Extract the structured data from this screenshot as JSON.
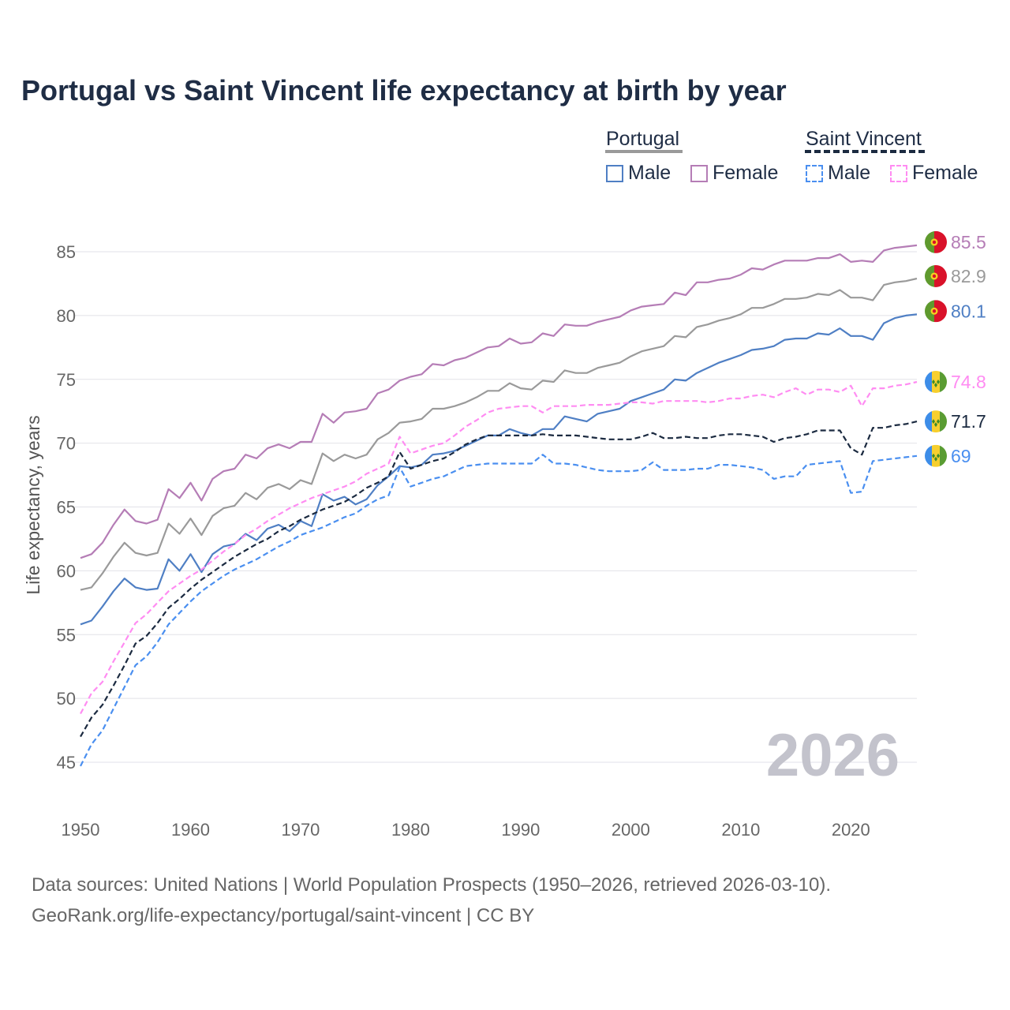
{
  "chart_data": {
    "type": "line",
    "title": "Portugal vs Saint Vincent life expectancy at birth by year",
    "xlabel": "",
    "ylabel": "Life expectancy, years",
    "xlim": [
      1950,
      2026
    ],
    "ylim": [
      45,
      85
    ],
    "x_ticks": [
      "1950",
      "1960",
      "1970",
      "1980",
      "1990",
      "2000",
      "2010",
      "2020"
    ],
    "y_ticks": [
      "45",
      "50",
      "55",
      "60",
      "65",
      "70",
      "75",
      "80",
      "85"
    ],
    "grid": true,
    "watermark_year": "2026",
    "legend": {
      "placement": "top-right",
      "groups": [
        {
          "name": "Portugal",
          "items": [
            "Male",
            "Female"
          ]
        },
        {
          "name": "Saint Vincent",
          "items": [
            "Male",
            "Female"
          ]
        }
      ]
    },
    "x_start": 1950,
    "series": [
      {
        "name": "Portugal Female",
        "color": "#b57db6",
        "dashed": false,
        "flag": "portugal",
        "end_label": "85.5",
        "values": [
          61.0,
          61.3,
          62.2,
          63.6,
          64.8,
          63.9,
          63.7,
          64.0,
          66.4,
          65.7,
          66.9,
          65.5,
          67.2,
          67.8,
          68.0,
          69.1,
          68.8,
          69.6,
          69.9,
          69.6,
          70.1,
          70.1,
          72.3,
          71.6,
          72.4,
          72.5,
          72.7,
          73.9,
          74.2,
          74.9,
          75.2,
          75.4,
          76.2,
          76.1,
          76.5,
          76.7,
          77.1,
          77.5,
          77.6,
          78.2,
          77.8,
          77.9,
          78.6,
          78.4,
          79.3,
          79.2,
          79.2,
          79.5,
          79.7,
          79.9,
          80.4,
          80.7,
          80.8,
          80.9,
          81.8,
          81.6,
          82.6,
          82.6,
          82.8,
          82.9,
          83.2,
          83.7,
          83.6,
          84.0,
          84.3,
          84.3,
          84.3,
          84.5,
          84.5,
          84.8,
          84.2,
          84.3,
          84.2,
          85.1,
          85.3,
          85.4,
          85.5
        ]
      },
      {
        "name": "Portugal",
        "color": "#9a9a9a",
        "dashed": false,
        "flag": "portugal",
        "end_label": "82.9",
        "values": [
          58.5,
          58.7,
          59.8,
          61.1,
          62.2,
          61.4,
          61.2,
          61.4,
          63.7,
          62.9,
          64.1,
          62.8,
          64.3,
          64.9,
          65.1,
          66.1,
          65.6,
          66.5,
          66.8,
          66.4,
          67.1,
          66.8,
          69.2,
          68.6,
          69.1,
          68.8,
          69.1,
          70.3,
          70.8,
          71.6,
          71.7,
          71.9,
          72.7,
          72.7,
          72.9,
          73.2,
          73.6,
          74.1,
          74.1,
          74.7,
          74.3,
          74.2,
          74.9,
          74.8,
          75.7,
          75.5,
          75.5,
          75.9,
          76.1,
          76.3,
          76.8,
          77.2,
          77.4,
          77.6,
          78.4,
          78.3,
          79.1,
          79.3,
          79.6,
          79.8,
          80.1,
          80.6,
          80.6,
          80.9,
          81.3,
          81.3,
          81.4,
          81.7,
          81.6,
          82.0,
          81.4,
          81.4,
          81.2,
          82.4,
          82.6,
          82.7,
          82.9
        ]
      },
      {
        "name": "Portugal Male",
        "color": "#4f7fc4",
        "dashed": false,
        "flag": "portugal",
        "end_label": "80.1",
        "values": [
          55.8,
          56.1,
          57.2,
          58.4,
          59.4,
          58.7,
          58.5,
          58.6,
          60.9,
          60.0,
          61.3,
          59.9,
          61.3,
          61.9,
          62.1,
          62.9,
          62.4,
          63.3,
          63.6,
          63.1,
          63.9,
          63.5,
          66.0,
          65.5,
          65.8,
          65.2,
          65.6,
          66.7,
          67.4,
          68.2,
          68.1,
          68.3,
          69.1,
          69.2,
          69.4,
          69.8,
          70.2,
          70.6,
          70.6,
          71.1,
          70.8,
          70.6,
          71.1,
          71.1,
          72.1,
          71.9,
          71.7,
          72.3,
          72.5,
          72.7,
          73.3,
          73.6,
          73.9,
          74.2,
          75.0,
          74.9,
          75.5,
          75.9,
          76.3,
          76.6,
          76.9,
          77.3,
          77.4,
          77.6,
          78.1,
          78.2,
          78.2,
          78.6,
          78.5,
          79.0,
          78.4,
          78.4,
          78.1,
          79.4,
          79.8,
          80.0,
          80.1
        ]
      },
      {
        "name": "Saint Vincent Female",
        "color": "#ff8cf2",
        "dashed": true,
        "flag": "saint-vincent",
        "end_label": "74.8",
        "values": [
          48.8,
          50.4,
          51.3,
          52.9,
          54.4,
          55.9,
          56.6,
          57.5,
          58.4,
          59.0,
          59.6,
          60.1,
          60.8,
          61.5,
          62.1,
          62.8,
          63.3,
          63.9,
          64.4,
          64.9,
          65.3,
          65.7,
          66.0,
          66.3,
          66.6,
          67.0,
          67.6,
          68.0,
          68.4,
          70.5,
          69.2,
          69.5,
          69.8,
          70.0,
          70.6,
          71.3,
          71.8,
          72.4,
          72.7,
          72.8,
          72.9,
          72.9,
          72.4,
          72.9,
          72.9,
          72.9,
          73.0,
          73.0,
          73.0,
          73.1,
          73.2,
          73.2,
          73.1,
          73.3,
          73.3,
          73.3,
          73.3,
          73.2,
          73.3,
          73.5,
          73.5,
          73.7,
          73.8,
          73.6,
          74.0,
          74.3,
          73.8,
          74.2,
          74.2,
          74.0,
          74.5,
          72.9,
          74.3,
          74.3,
          74.5,
          74.6,
          74.8
        ]
      },
      {
        "name": "Saint Vincent",
        "color": "#1b2a40",
        "dashed": true,
        "flag": "saint-vincent",
        "end_label": "71.7",
        "values": [
          47.0,
          48.5,
          49.5,
          51.0,
          52.6,
          54.3,
          54.9,
          55.9,
          57.1,
          57.8,
          58.6,
          59.3,
          59.9,
          60.5,
          61.1,
          61.6,
          62.1,
          62.5,
          63.1,
          63.5,
          64.0,
          64.4,
          64.8,
          65.1,
          65.4,
          65.9,
          66.5,
          66.9,
          67.4,
          69.3,
          68.0,
          68.3,
          68.6,
          68.8,
          69.3,
          69.9,
          70.3,
          70.6,
          70.6,
          70.6,
          70.6,
          70.6,
          70.7,
          70.6,
          70.6,
          70.6,
          70.5,
          70.4,
          70.3,
          70.3,
          70.3,
          70.5,
          70.8,
          70.4,
          70.4,
          70.5,
          70.4,
          70.4,
          70.6,
          70.7,
          70.7,
          70.6,
          70.5,
          70.1,
          70.4,
          70.5,
          70.7,
          71.0,
          71.0,
          71.0,
          69.6,
          69.1,
          71.2,
          71.2,
          71.4,
          71.5,
          71.7
        ]
      },
      {
        "name": "Saint Vincent Male",
        "color": "#4a8ff0",
        "dashed": true,
        "flag": "saint-vincent",
        "end_label": "69",
        "values": [
          44.7,
          46.4,
          47.5,
          49.2,
          50.9,
          52.6,
          53.3,
          54.4,
          55.8,
          56.7,
          57.6,
          58.4,
          59.0,
          59.6,
          60.1,
          60.5,
          60.9,
          61.4,
          61.9,
          62.3,
          62.8,
          63.1,
          63.4,
          63.8,
          64.2,
          64.5,
          65.1,
          65.6,
          65.9,
          68.1,
          66.6,
          66.9,
          67.2,
          67.4,
          67.8,
          68.2,
          68.3,
          68.4,
          68.4,
          68.4,
          68.4,
          68.4,
          69.1,
          68.4,
          68.4,
          68.3,
          68.1,
          67.9,
          67.8,
          67.8,
          67.8,
          67.9,
          68.5,
          67.9,
          67.9,
          67.9,
          68.0,
          68.0,
          68.3,
          68.3,
          68.2,
          68.1,
          67.9,
          67.2,
          67.4,
          67.4,
          68.3,
          68.4,
          68.5,
          68.6,
          66.1,
          66.2,
          68.6,
          68.7,
          68.8,
          68.9,
          69.0
        ]
      }
    ]
  },
  "sources": {
    "line1": "Data sources: United Nations | World Population Prospects (1950–2026, retrieved 2026-03-10).",
    "line2": "GeoRank.org/life-expectancy/portugal/saint-vincent | CC BY"
  }
}
